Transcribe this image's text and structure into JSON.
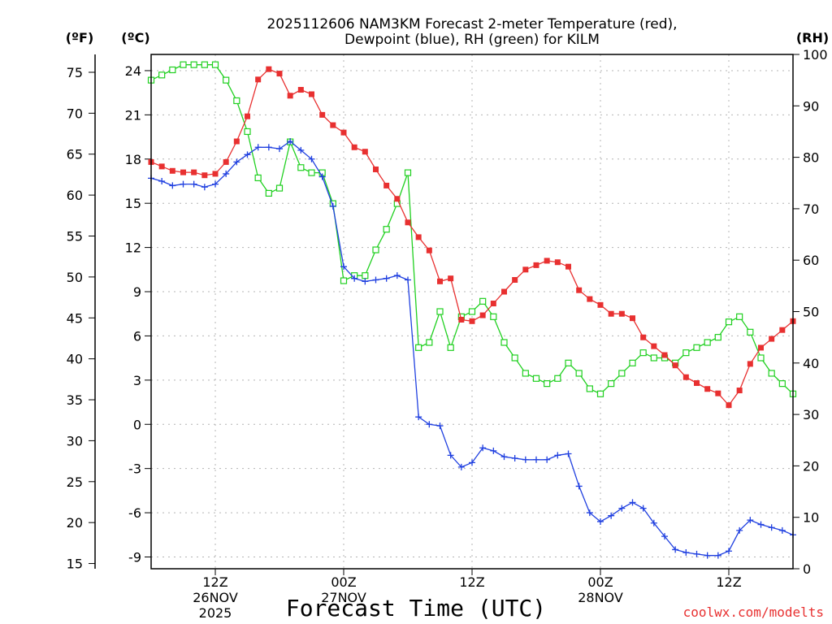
{
  "chart_data": {
    "type": "line",
    "title_line1": "2025112606 NAM3KM Forecast 2-meter Temperature (red),",
    "title_line2": "Dewpoint (blue), RH (green) for KILM",
    "xlabel": "Forecast Time (UTC)",
    "watermark": "coolwx.com/modelts",
    "axis_units": {
      "fahrenheit": "(ºF)",
      "celsius": "(ºC)",
      "rh": "(RH)"
    },
    "x_range_hours": [
      0,
      60
    ],
    "x_ticks": [
      {
        "hour": 6,
        "time": "12Z",
        "date": "26NOV",
        "year": "2025"
      },
      {
        "hour": 18,
        "time": "00Z",
        "date": "27NOV",
        "year": ""
      },
      {
        "hour": 30,
        "time": "12Z",
        "date": "",
        "year": ""
      },
      {
        "hour": 42,
        "time": "00Z",
        "date": "28NOV",
        "year": ""
      },
      {
        "hour": 54,
        "time": "12Z",
        "date": "",
        "year": ""
      }
    ],
    "fahrenheit_ticks": [
      "15",
      "20",
      "25",
      "30",
      "35",
      "40",
      "45",
      "50",
      "55",
      "60",
      "65",
      "70",
      "75"
    ],
    "celsius_ticks": [
      "-9",
      "-6",
      "-3",
      "0",
      "3",
      "6",
      "9",
      "12",
      "15",
      "18",
      "21",
      "24"
    ],
    "rh_ticks": [
      "0",
      "10",
      "20",
      "30",
      "40",
      "50",
      "60",
      "70",
      "80",
      "90",
      "100"
    ],
    "y_range_celsius": [
      -9.8,
      25.1
    ],
    "y_range_rh": [
      0,
      100
    ],
    "series": [
      {
        "name": "Temperature",
        "color": "#e83030",
        "marker": "filled-square",
        "unit": "C",
        "values": [
          17.8,
          17.5,
          17.2,
          17.1,
          17.1,
          16.9,
          17.0,
          17.8,
          19.2,
          20.9,
          23.4,
          24.1,
          23.8,
          22.3,
          22.7,
          22.4,
          21.0,
          20.3,
          19.8,
          18.8,
          18.5,
          17.3,
          16.2,
          15.3,
          13.7,
          12.7,
          11.8,
          9.7,
          9.9,
          7.1,
          7.0,
          7.4,
          8.2,
          9.0,
          9.8,
          10.5,
          10.8,
          11.1,
          11.0,
          10.7,
          9.1,
          8.5,
          8.1,
          7.5,
          7.5,
          7.2,
          5.9,
          5.3,
          4.7,
          4.0,
          3.2,
          2.8,
          2.4,
          2.1,
          1.3,
          2.3,
          4.1,
          5.2,
          5.8,
          6.4,
          7.0
        ]
      },
      {
        "name": "Dewpoint",
        "color": "#2040e0",
        "marker": "plus",
        "unit": "C",
        "values": [
          16.7,
          16.5,
          16.2,
          16.3,
          16.3,
          16.1,
          16.3,
          17.0,
          17.8,
          18.3,
          18.8,
          18.8,
          18.7,
          19.2,
          18.6,
          18.0,
          16.8,
          14.8,
          10.7,
          9.9,
          9.7,
          9.8,
          9.9,
          10.1,
          9.8,
          0.5,
          0.0,
          -0.1,
          -2.1,
          -2.9,
          -2.6,
          -1.6,
          -1.8,
          -2.2,
          -2.3,
          -2.4,
          -2.4,
          -2.4,
          -2.1,
          -2.0,
          -4.2,
          -6.0,
          -6.6,
          -6.2,
          -5.7,
          -5.3,
          -5.7,
          -6.7,
          -7.6,
          -8.5,
          -8.7,
          -8.8,
          -8.9,
          -8.9,
          -8.6,
          -7.2,
          -6.5,
          -6.8,
          -7.0,
          -7.2,
          -7.5
        ]
      },
      {
        "name": "RH",
        "color": "#20d020",
        "marker": "open-square",
        "unit": "%",
        "values": [
          95,
          96,
          97,
          98,
          98,
          98,
          98,
          95,
          91,
          85,
          76,
          73,
          74,
          83,
          78,
          77,
          77,
          71,
          56,
          57,
          57,
          62,
          66,
          71,
          77,
          43,
          44,
          50,
          43,
          49,
          50,
          52,
          49,
          44,
          41,
          38,
          37,
          36,
          37,
          40,
          38,
          35,
          34,
          36,
          38,
          40,
          42,
          41,
          41,
          40,
          42,
          43,
          44,
          45,
          48,
          49,
          46,
          41,
          38,
          36,
          34
        ]
      }
    ]
  }
}
